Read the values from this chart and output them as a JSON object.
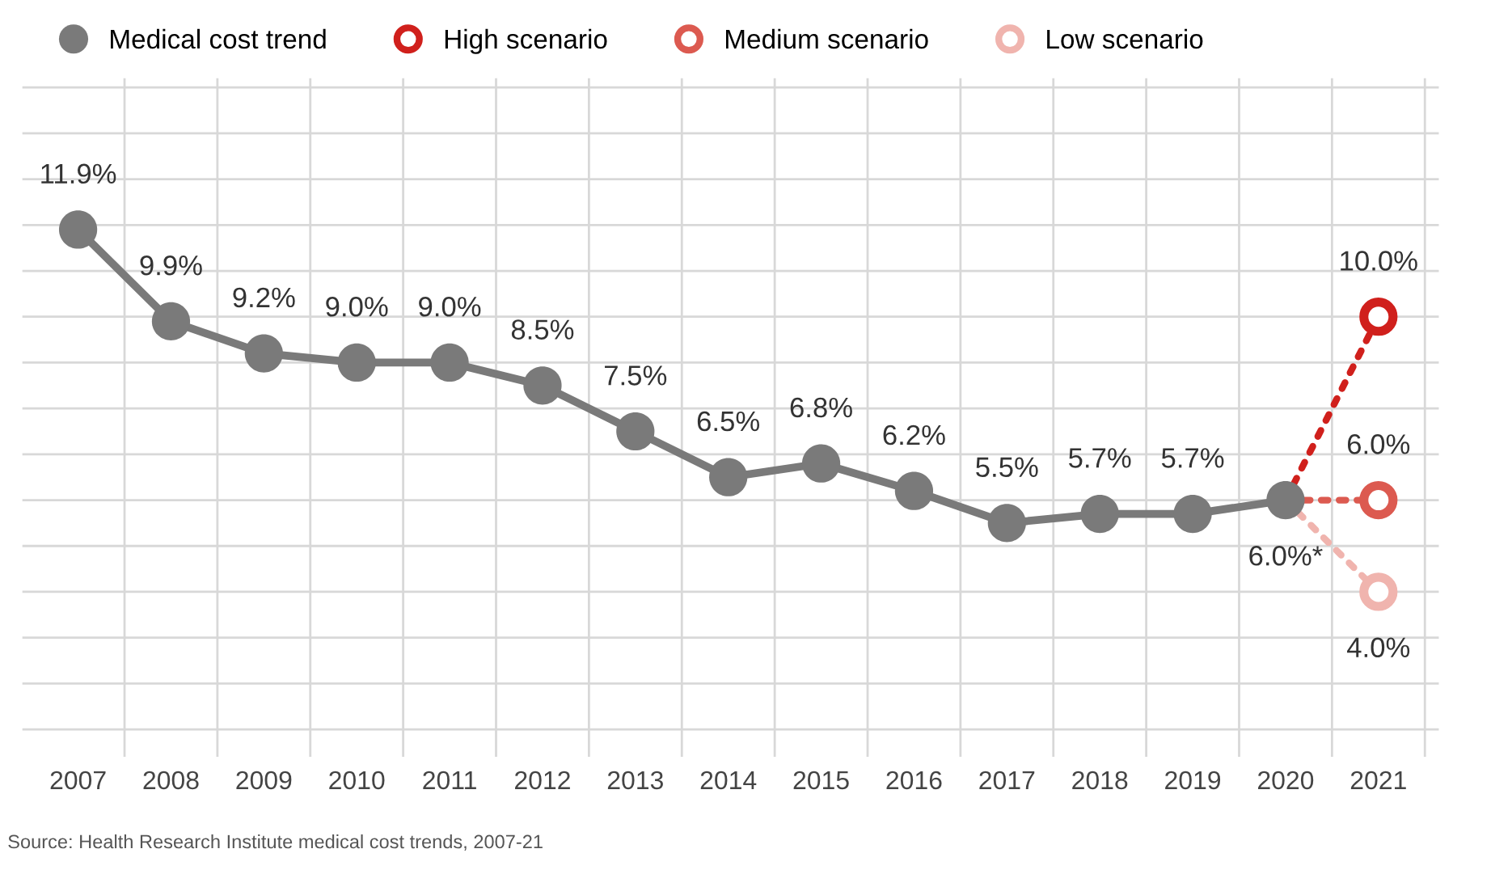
{
  "chart_data": {
    "type": "line",
    "categories": [
      "2007",
      "2008",
      "2009",
      "2010",
      "2011",
      "2012",
      "2013",
      "2014",
      "2015",
      "2016",
      "2017",
      "2018",
      "2019",
      "2020",
      "2021"
    ],
    "series": [
      {
        "name": "Medical cost trend",
        "color": "#7a7a7a",
        "marker": "circle",
        "line_style": "solid",
        "values": [
          11.9,
          9.9,
          9.2,
          9.0,
          9.0,
          8.5,
          7.5,
          6.5,
          6.8,
          6.2,
          5.5,
          5.7,
          5.7,
          6.0,
          null
        ],
        "value_labels": [
          "11.9%",
          "9.9%",
          "9.2%",
          "9.0%",
          "9.0%",
          "8.5%",
          "7.5%",
          "6.5%",
          "6.8%",
          "6.2%",
          "5.5%",
          "5.7%",
          "5.7%",
          "6.0%*",
          null
        ]
      },
      {
        "name": "High scenario",
        "color": "#d0201c",
        "marker": "circle",
        "line_style": "dotted",
        "values": [
          null,
          null,
          null,
          null,
          null,
          null,
          null,
          null,
          null,
          null,
          null,
          null,
          null,
          6.0,
          10.0
        ],
        "value_labels": [
          null,
          null,
          null,
          null,
          null,
          null,
          null,
          null,
          null,
          null,
          null,
          null,
          null,
          null,
          "10.0%"
        ]
      },
      {
        "name": "Medium scenario",
        "color": "#dc5a50",
        "marker": "circle",
        "line_style": "dotted",
        "values": [
          null,
          null,
          null,
          null,
          null,
          null,
          null,
          null,
          null,
          null,
          null,
          null,
          null,
          6.0,
          6.0
        ],
        "value_labels": [
          null,
          null,
          null,
          null,
          null,
          null,
          null,
          null,
          null,
          null,
          null,
          null,
          null,
          null,
          "6.0%"
        ]
      },
      {
        "name": "Low scenario",
        "color": "#f0b4ae",
        "marker": "circle",
        "line_style": "dotted",
        "values": [
          null,
          null,
          null,
          null,
          null,
          null,
          null,
          null,
          null,
          null,
          null,
          null,
          null,
          6.0,
          4.0
        ],
        "value_labels": [
          null,
          null,
          null,
          null,
          null,
          null,
          null,
          null,
          null,
          null,
          null,
          null,
          null,
          null,
          "4.0%"
        ]
      }
    ],
    "grid": true,
    "legend": "top",
    "tick_labels": "x",
    "annotations": [
      "Source: Health Research Institute medical cost trends, 2007-21"
    ]
  }
}
